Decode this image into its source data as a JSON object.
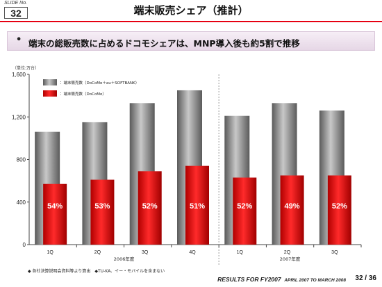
{
  "slide": {
    "no_label": "SLIDE No.",
    "no_value": "32",
    "title": "端末販売シェア（推計）",
    "bullet_mark": "•",
    "bullet_text": "端末の総販売数に占めるドコモシェアは、MNP導入後も約5割で推移",
    "unit": "（単位:万台）",
    "footnote": "◆ 各社決算説明会資料等より算出　◆TU-KA、イー・モバイルを含まない",
    "footer_main": "RESULTS FOR FY2007",
    "footer_sub": "APRIL 2007 TO MARCH 2008",
    "page": "32 / 36"
  },
  "colors": {
    "gray_bar": "#8a8a8a",
    "red_bar": "#e00000",
    "title_rule": "#e60012"
  },
  "chart_data": {
    "type": "bar",
    "categories": [
      "1Q",
      "2Q",
      "3Q",
      "4Q",
      "1Q",
      "2Q",
      "3Q"
    ],
    "groups": [
      {
        "label": "2006年度",
        "start": 0,
        "end": 3
      },
      {
        "label": "2007年度",
        "start": 4,
        "end": 6
      }
    ],
    "series": [
      {
        "name": "：端末販売数（DoCoMo＋au＋SOFTBANK）",
        "color": "#8a8a8a",
        "values": [
          1060,
          1150,
          1330,
          1450,
          1210,
          1330,
          1260
        ]
      },
      {
        "name": "：端末販売数（DoCoMo）",
        "color": "#e00000",
        "values": [
          570,
          610,
          690,
          740,
          630,
          650,
          650
        ]
      }
    ],
    "share_labels": [
      "54%",
      "53%",
      "52%",
      "51%",
      "52%",
      "49%",
      "52%"
    ],
    "ylim": [
      0,
      1600
    ],
    "yticks": [
      0,
      400,
      800,
      1200,
      1600
    ],
    "ytick_labels": [
      "0",
      "400",
      "800",
      "1,200",
      "1,600"
    ],
    "legend_position": "top-left",
    "grid": false
  }
}
